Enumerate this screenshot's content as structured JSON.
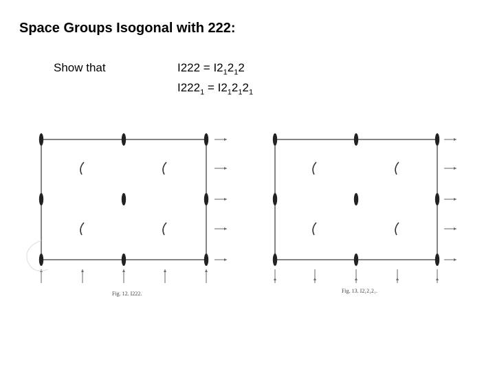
{
  "slide": {
    "title": "Space Groups Isogonal with 222:",
    "lead": "Show that",
    "equations": [
      [
        {
          "t": "I222 = I2"
        },
        {
          "t": "1",
          "sub": true
        },
        {
          "t": "2"
        },
        {
          "t": "1",
          "sub": true
        },
        {
          "t": "2"
        }
      ],
      [
        {
          "t": "I222"
        },
        {
          "t": "1",
          "sub": true
        },
        {
          "t": " = I2"
        },
        {
          "t": "1",
          "sub": true
        },
        {
          "t": "2"
        },
        {
          "t": "1",
          "sub": true
        },
        {
          "t": "2"
        },
        {
          "t": "1",
          "sub": true
        }
      ]
    ],
    "figures": [
      {
        "caption": "Fig. 12.   I222."
      },
      {
        "caption": "Fig. 13.   I2₁2₁2₁."
      }
    ]
  }
}
